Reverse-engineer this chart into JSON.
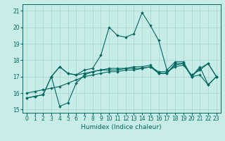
{
  "xlabel": "Humidex (Indice chaleur)",
  "xlim": [
    -0.5,
    23.5
  ],
  "ylim": [
    14.8,
    21.4
  ],
  "xticks": [
    0,
    1,
    2,
    3,
    4,
    5,
    6,
    7,
    8,
    9,
    10,
    11,
    12,
    13,
    14,
    15,
    16,
    17,
    18,
    19,
    20,
    21,
    22,
    23
  ],
  "yticks": [
    15,
    16,
    17,
    18,
    19,
    20,
    21
  ],
  "bg_color": "#c8ece8",
  "grid_color": "#a8d4d0",
  "line_color": "#006860",
  "lines": [
    {
      "x": [
        0,
        1,
        2,
        3,
        4,
        5,
        6,
        7,
        8,
        9,
        10,
        11,
        12,
        13,
        14,
        15,
        16,
        17,
        18,
        19,
        20,
        21,
        22,
        23
      ],
      "y": [
        15.7,
        15.8,
        15.9,
        17.0,
        17.6,
        17.2,
        17.1,
        17.4,
        17.5,
        18.3,
        20.0,
        19.5,
        19.4,
        19.6,
        20.9,
        20.1,
        19.2,
        17.4,
        17.9,
        17.9,
        17.0,
        17.6,
        16.5,
        17.0
      ]
    },
    {
      "x": [
        0,
        1,
        2,
        3,
        4,
        5,
        6,
        7,
        8,
        9,
        10,
        11,
        12,
        13,
        14,
        15,
        16,
        17,
        18,
        19,
        20,
        21,
        22,
        23
      ],
      "y": [
        15.7,
        15.8,
        15.9,
        17.0,
        15.2,
        15.4,
        16.6,
        17.1,
        17.3,
        17.4,
        17.5,
        17.5,
        17.5,
        17.6,
        17.6,
        17.7,
        17.2,
        17.2,
        17.8,
        17.8,
        17.0,
        17.1,
        16.5,
        17.0
      ]
    },
    {
      "x": [
        0,
        1,
        2,
        3,
        4,
        5,
        6,
        7,
        8,
        9,
        10,
        11,
        12,
        13,
        14,
        15,
        16,
        17,
        18,
        19,
        20,
        21,
        22,
        23
      ],
      "y": [
        16.0,
        16.1,
        16.2,
        16.3,
        16.4,
        16.6,
        16.8,
        17.0,
        17.1,
        17.2,
        17.3,
        17.3,
        17.4,
        17.4,
        17.5,
        17.6,
        17.3,
        17.3,
        17.6,
        17.7,
        17.1,
        17.4,
        17.8,
        17.0
      ]
    },
    {
      "x": [
        3,
        4,
        5,
        6,
        7,
        8,
        9,
        10,
        11,
        12,
        13,
        14,
        15,
        16,
        17,
        18,
        19,
        20,
        21,
        22,
        23
      ],
      "y": [
        17.0,
        17.6,
        17.2,
        17.1,
        17.2,
        17.3,
        17.4,
        17.4,
        17.4,
        17.5,
        17.5,
        17.5,
        17.6,
        17.2,
        17.2,
        17.7,
        17.8,
        17.0,
        17.5,
        17.8,
        17.0
      ]
    }
  ]
}
